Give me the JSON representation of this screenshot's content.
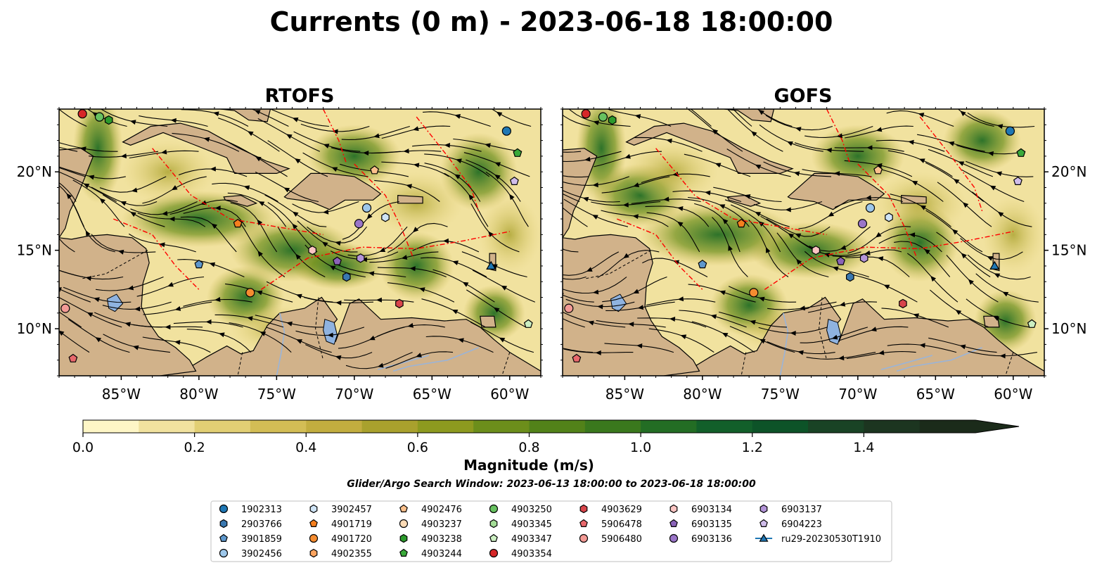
{
  "title": "Currents (0 m) - 2023-06-18 18:00:00",
  "colors": {
    "land": "#d1b28a",
    "lake": "#8fb3e0",
    "river": "#9ab4d8",
    "eez": "#ff0000",
    "stream": "#000000"
  },
  "chart_data": [
    {
      "type": "heatmap",
      "title": "RTOFS",
      "x_ticks": [
        "85°W",
        "80°W",
        "75°W",
        "70°W",
        "65°W",
        "60°W"
      ],
      "y_ticks": [
        "20°N",
        "15°N",
        "10°N"
      ],
      "xlim": [
        -89,
        -58
      ],
      "ylim": [
        7,
        24
      ]
    },
    {
      "type": "heatmap",
      "title": "GOFS",
      "x_ticks": [
        "85°W",
        "80°W",
        "75°W",
        "70°W",
        "65°W",
        "60°W"
      ],
      "y_ticks": [
        "20°N",
        "15°N",
        "10°N"
      ],
      "xlim": [
        -89,
        -58
      ],
      "ylim": [
        7,
        24
      ]
    }
  ],
  "colorbar": {
    "label": "Magnitude (m/s)",
    "ticks": [
      "0.0",
      "0.2",
      "0.4",
      "0.6",
      "0.8",
      "1.0",
      "1.2",
      "1.4"
    ],
    "tick_values": [
      0.0,
      0.2,
      0.4,
      0.6,
      0.8,
      1.0,
      1.2,
      1.4
    ],
    "range": [
      0,
      1.6
    ],
    "step": 0.1,
    "extend": "max",
    "colors": [
      "#fef6c6",
      "#f1e29f",
      "#e2cf74",
      "#d3bd55",
      "#c2ad3f",
      "#a9a12d",
      "#8d9a1f",
      "#6c8e1b",
      "#528219",
      "#3a781d",
      "#236d24",
      "#125f2a",
      "#0d5328",
      "#194325",
      "#1c3520",
      "#1b2b1a"
    ]
  },
  "search_window": "Glider/Argo Search Window: 2023-06-13 18:00:00 to 2023-06-18 18:00:00",
  "legend": {
    "columns": [
      [
        {
          "label": "1902313",
          "shape": "circle",
          "color": "#1f77b4"
        },
        {
          "label": "2903766",
          "shape": "hexagon",
          "color": "#3a78b0"
        },
        {
          "label": "3901859",
          "shape": "pentagon",
          "color": "#5e97cc"
        },
        {
          "label": "3902456",
          "shape": "circle",
          "color": "#9dc7ea"
        }
      ],
      [
        {
          "label": "3902457",
          "shape": "hexagon",
          "color": "#cfe4f6"
        },
        {
          "label": "4901719",
          "shape": "pentagon",
          "color": "#f57f1e"
        },
        {
          "label": "4901720",
          "shape": "circle",
          "color": "#f58c30"
        },
        {
          "label": "4902355",
          "shape": "hexagon",
          "color": "#fca45f"
        }
      ],
      [
        {
          "label": "4902476",
          "shape": "pentagon",
          "color": "#fbc08c"
        },
        {
          "label": "4903237",
          "shape": "circle",
          "color": "#fddbb6"
        },
        {
          "label": "4903238",
          "shape": "hexagon",
          "color": "#2c9a2c"
        },
        {
          "label": "4903244",
          "shape": "pentagon",
          "color": "#3aa93a"
        }
      ],
      [
        {
          "label": "4903250",
          "shape": "circle",
          "color": "#67c160"
        },
        {
          "label": "4903345",
          "shape": "hexagon",
          "color": "#a4dd97"
        },
        {
          "label": "4903347",
          "shape": "pentagon",
          "color": "#ccefc2"
        },
        {
          "label": "4903354",
          "shape": "circle",
          "color": "#d62728"
        }
      ],
      [
        {
          "label": "4903629",
          "shape": "hexagon",
          "color": "#d8454b"
        },
        {
          "label": "5906478",
          "shape": "pentagon",
          "color": "#e8686c"
        },
        {
          "label": "5906480",
          "shape": "circle",
          "color": "#f39a95"
        }
      ],
      [
        {
          "label": "6903134",
          "shape": "hexagon",
          "color": "#fbc5c3"
        },
        {
          "label": "6903135",
          "shape": "pentagon",
          "color": "#8a63b8"
        },
        {
          "label": "6903136",
          "shape": "circle",
          "color": "#9a75c8"
        }
      ],
      [
        {
          "label": "6903137",
          "shape": "hexagon",
          "color": "#b394d8"
        },
        {
          "label": "6904223",
          "shape": "pentagon",
          "color": "#d0bdea"
        },
        {
          "label": "ru29-20230530T1910",
          "shape": "triangle-line",
          "color": "#1f77b4"
        }
      ]
    ]
  },
  "floats": [
    {
      "id": "1902313",
      "lon": -60.2,
      "lat": 22.6
    },
    {
      "id": "2903766",
      "lon": -70.5,
      "lat": 13.3
    },
    {
      "id": "3901859",
      "lon": -80.0,
      "lat": 14.1
    },
    {
      "id": "3902456",
      "lon": -69.2,
      "lat": 17.7
    },
    {
      "id": "3902457",
      "lon": -68.0,
      "lat": 17.1
    },
    {
      "id": "4901719",
      "lon": -77.5,
      "lat": 16.7
    },
    {
      "id": "4901720",
      "lon": -76.7,
      "lat": 12.3
    },
    {
      "id": "4902476",
      "lon": -68.7,
      "lat": 20.1
    },
    {
      "id": "4903238",
      "lon": -85.8,
      "lat": 23.3
    },
    {
      "id": "4903244",
      "lon": -59.5,
      "lat": 21.2
    },
    {
      "id": "4903250",
      "lon": -86.4,
      "lat": 23.5
    },
    {
      "id": "4903347",
      "lon": -58.8,
      "lat": 10.3
    },
    {
      "id": "4903354",
      "lon": -87.5,
      "lat": 23.7
    },
    {
      "id": "4903629",
      "lon": -67.1,
      "lat": 11.6
    },
    {
      "id": "5906478",
      "lon": -88.1,
      "lat": 8.1
    },
    {
      "id": "5906480",
      "lon": -88.6,
      "lat": 11.3
    },
    {
      "id": "6903134",
      "lon": -72.7,
      "lat": 15.0
    },
    {
      "id": "6903135",
      "lon": -71.1,
      "lat": 14.3
    },
    {
      "id": "6903136",
      "lon": -69.7,
      "lat": 16.7
    },
    {
      "id": "6903137",
      "lon": -69.6,
      "lat": 14.5
    },
    {
      "id": "6904223",
      "lon": -59.7,
      "lat": 19.4
    },
    {
      "id": "ru29-20230530T1910",
      "lon": -61.2,
      "lat": 14.0
    }
  ]
}
